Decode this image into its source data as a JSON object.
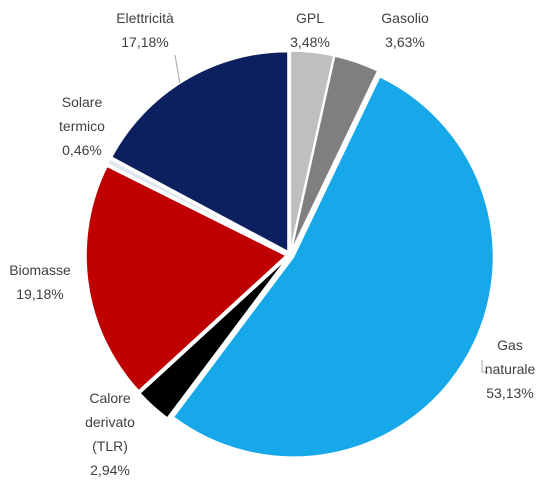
{
  "chart_data": {
    "type": "pie",
    "categories": [
      "GPL",
      "Gasolio",
      "Gas naturale",
      "Calore derivato (TLR)",
      "Biomasse",
      "Solare termico",
      "Elettricità"
    ],
    "values": [
      3.48,
      3.63,
      53.13,
      2.94,
      19.18,
      0.46,
      17.18
    ],
    "value_labels": [
      "3,48%",
      "3,63%",
      "53,13%",
      "2,94%",
      "19,18%",
      "0,46%",
      "17,18%"
    ],
    "colors": [
      "#bfbfbf",
      "#7f7f7f",
      "#17a8ea",
      "#000000",
      "#c00000",
      "#dfe6f0",
      "#0c1f5e"
    ]
  }
}
